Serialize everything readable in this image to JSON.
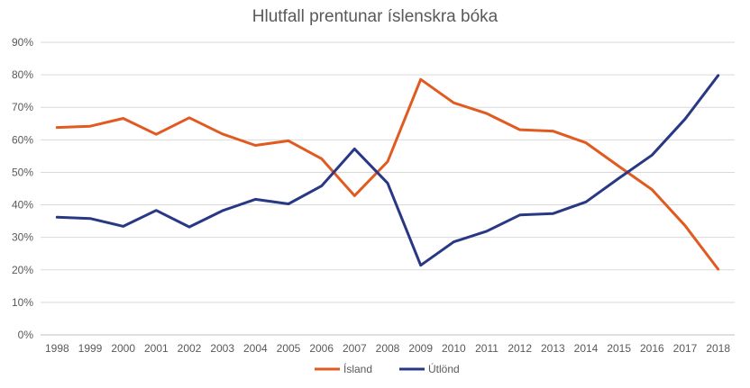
{
  "chart_data": {
    "type": "line",
    "title": "Hlutfall prentunar íslenskra bóka",
    "xlabel": "",
    "ylabel": "",
    "ylim": [
      0,
      90
    ],
    "yticks": [
      "0%",
      "10%",
      "20%",
      "30%",
      "40%",
      "50%",
      "60%",
      "70%",
      "80%",
      "90%"
    ],
    "grid": true,
    "legend_position": "bottom",
    "categories": [
      "1998",
      "1999",
      "2000",
      "2001",
      "2002",
      "2003",
      "2004",
      "2005",
      "2006",
      "2007",
      "2008",
      "2009",
      "2010",
      "2011",
      "2012",
      "2013",
      "2014",
      "2015",
      "2016",
      "2017",
      "2018"
    ],
    "series": [
      {
        "name": "Ísland",
        "color": "#E15A1F",
        "values": [
          63.8,
          64.2,
          66.6,
          61.7,
          66.8,
          61.8,
          58.3,
          59.7,
          54.2,
          42.8,
          53.3,
          78.6,
          71.4,
          68.1,
          63.1,
          62.7,
          59.1,
          51.8,
          44.7,
          33.6,
          20.2
        ]
      },
      {
        "name": "Útlönd",
        "color": "#283885",
        "values": [
          36.2,
          35.8,
          33.4,
          38.3,
          33.2,
          38.2,
          41.7,
          40.3,
          45.8,
          57.2,
          46.7,
          21.4,
          28.6,
          31.9,
          36.9,
          37.3,
          40.9,
          48.2,
          55.3,
          66.4,
          79.8
        ]
      }
    ]
  }
}
